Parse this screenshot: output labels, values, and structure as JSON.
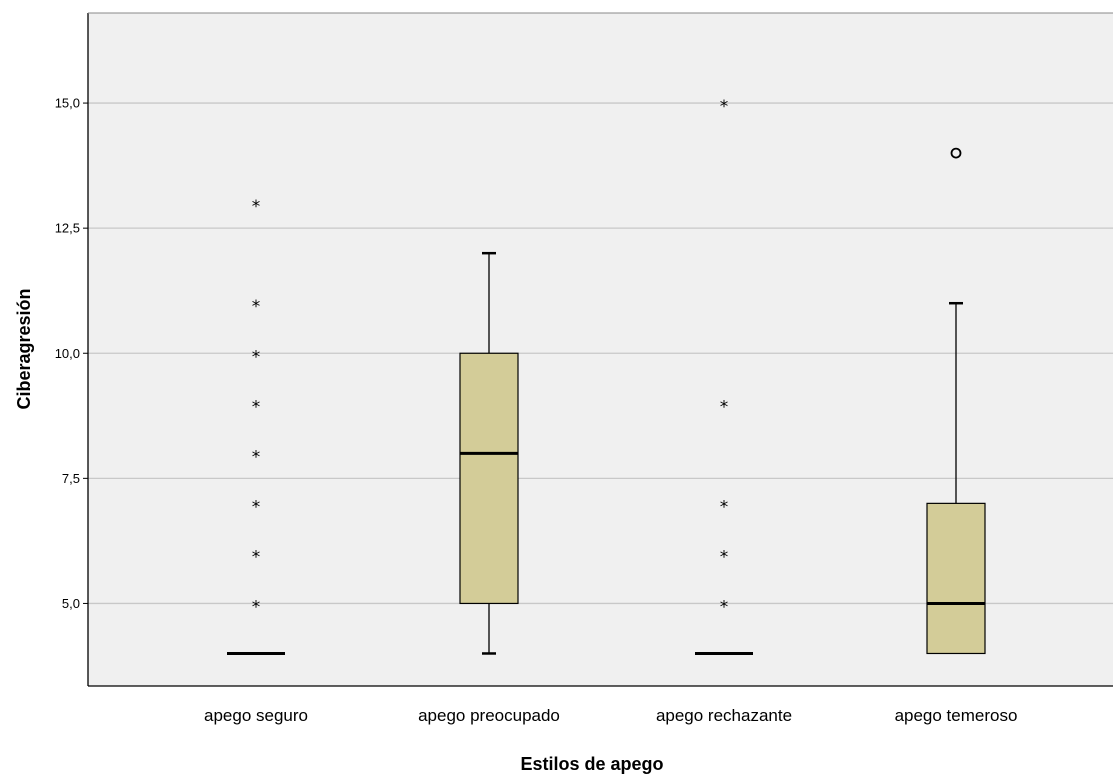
{
  "chart_data": {
    "type": "boxplot",
    "xlabel": "Estilos de apego",
    "ylabel": "Ciberagresión",
    "ylim": [
      3.35,
      16.8
    ],
    "yticks": [
      5.0,
      7.5,
      10.0,
      12.5,
      15.0
    ],
    "ytick_labels": [
      "5,0",
      "7,5",
      "10,0",
      "12,5",
      "15,0"
    ],
    "grid": true,
    "colors": {
      "box_fill": "#d3cc98",
      "plot_bg": "#f0f0f0",
      "gridline": "#c8c8c8",
      "stroke": "#000000"
    },
    "categories": [
      "apego seguro",
      "apego preocupado",
      "apego rechazante",
      "apego temeroso"
    ],
    "boxes": [
      {
        "min": 4,
        "q1": 4,
        "median": 4,
        "q3": 4,
        "max": 4,
        "outliers": [],
        "extremes": [
          5,
          6,
          7,
          8,
          9,
          10,
          11,
          13
        ]
      },
      {
        "min": 4,
        "q1": 5,
        "median": 8,
        "q3": 10,
        "max": 12,
        "outliers": [],
        "extremes": []
      },
      {
        "min": 4,
        "q1": 4,
        "median": 4,
        "q3": 4,
        "max": 4,
        "outliers": [],
        "extremes": [
          5,
          6,
          7,
          9,
          15
        ]
      },
      {
        "min": 4,
        "q1": 4,
        "median": 5,
        "q3": 7,
        "max": 11,
        "outliers": [
          14
        ],
        "extremes": []
      }
    ]
  }
}
